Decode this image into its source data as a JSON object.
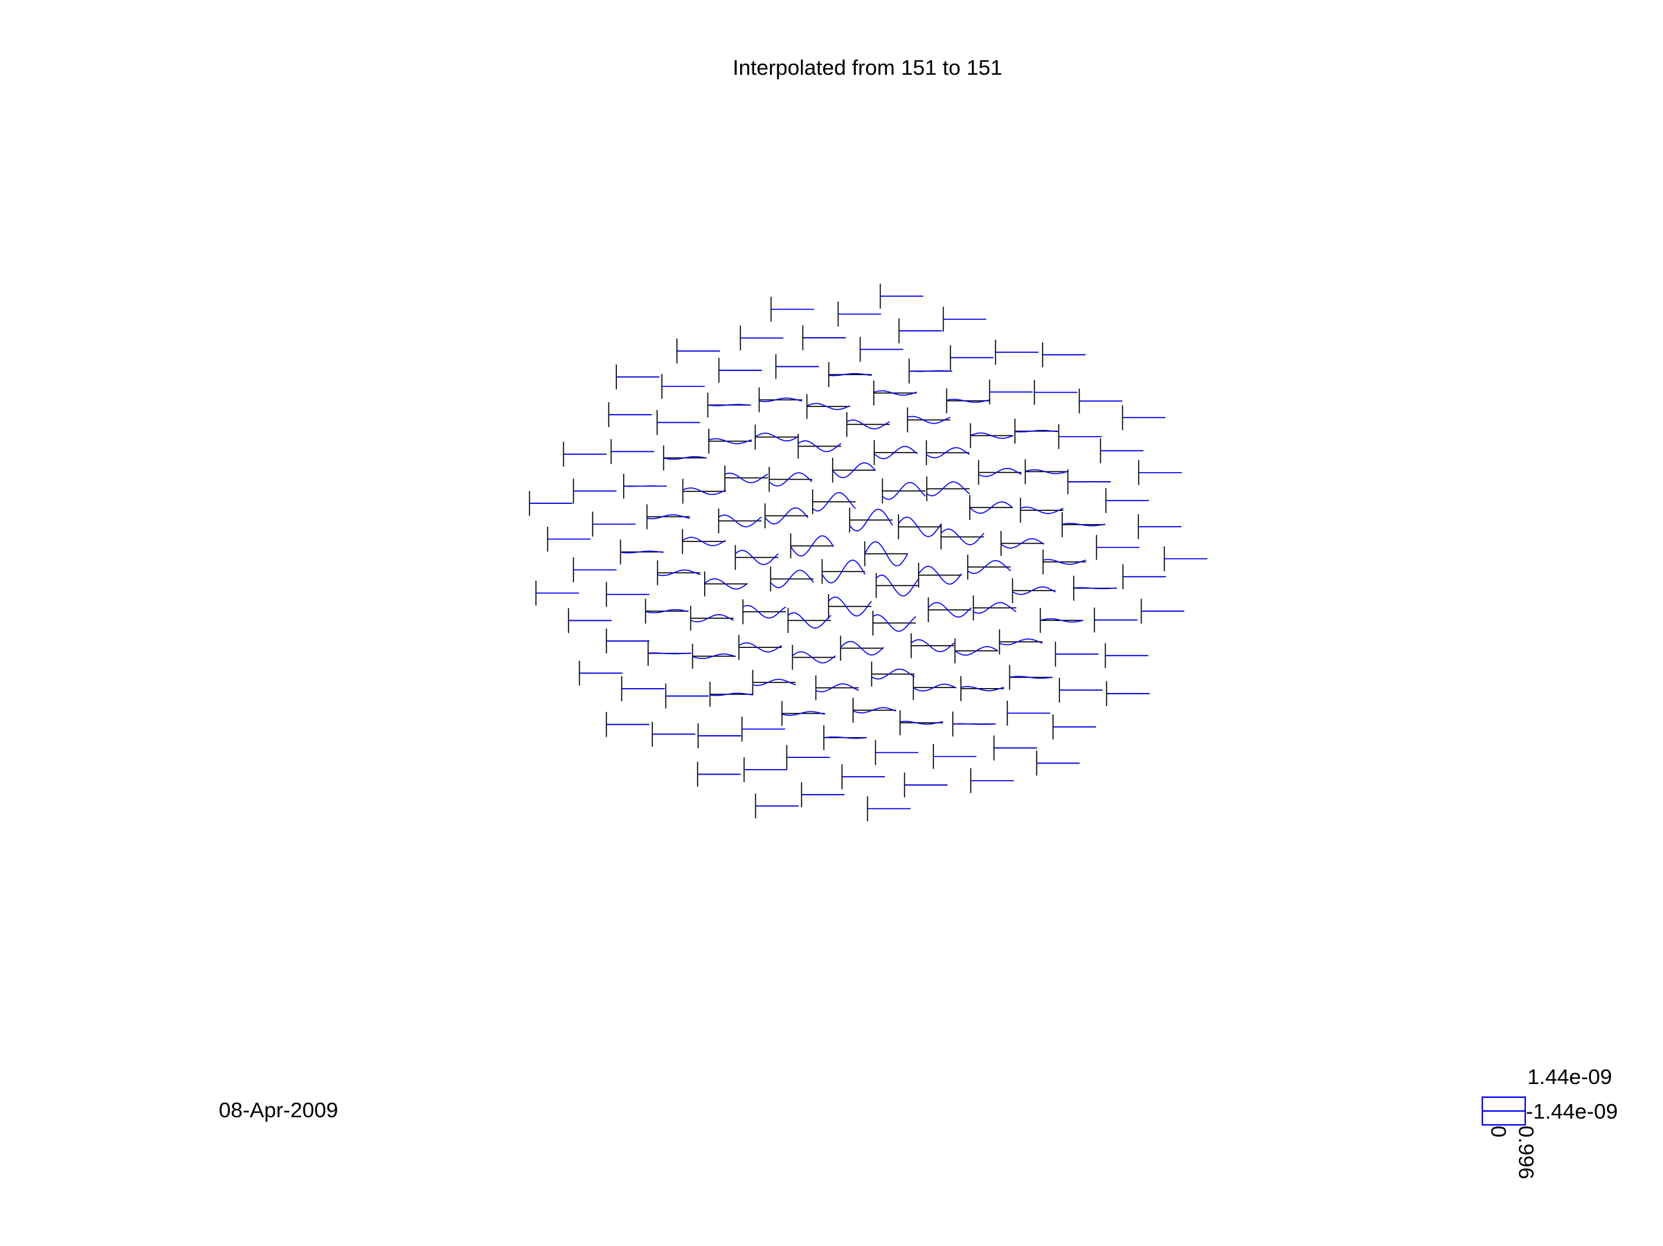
{
  "chart_data": {
    "type": "line",
    "title": "Interpolated from 151 to 151",
    "date_label": "08-Apr-2009",
    "colors": {
      "interpolated": "#0000ff",
      "original": "#000000",
      "text": "#000000"
    },
    "scale": {
      "ymax_label": "1.44e-09",
      "ymin_label": "-1.44e-09",
      "xmin_label": "0",
      "xmax_label": "0.996",
      "ylim": [
        -1.44e-09,
        1.44e-09
      ],
      "xlim": [
        0,
        0.996
      ]
    },
    "channel_count": 151,
    "legend_placement": "bottom-right"
  }
}
